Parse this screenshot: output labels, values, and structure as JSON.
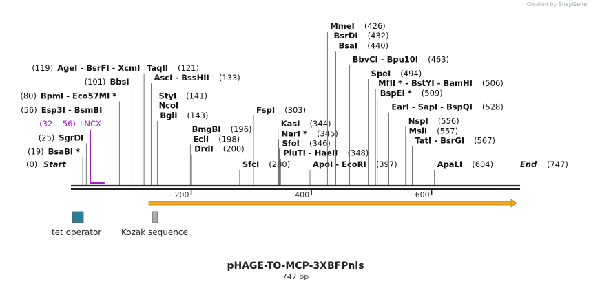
{
  "brand": {
    "created_by": "Created by",
    "app": "SnapGene"
  },
  "plasmid": {
    "name": "pHAGE-TO-MCP-3XBFPnls",
    "length_label": "747 bp"
  },
  "map": {
    "total_bp": 747,
    "axis_ticks": [
      200,
      400,
      600
    ],
    "start_label": {
      "pos": "(0)",
      "name": "Start"
    },
    "end_label": {
      "name": "End",
      "pos": "(747)"
    },
    "primer": {
      "range": "(32 .. 56)",
      "name": "LNCX",
      "start": 32,
      "end": 56,
      "color": "#a020c8"
    },
    "orf": {
      "start": 141,
      "end": 747,
      "color": "#f5a623"
    },
    "legend": [
      {
        "label": "tet operator",
        "color": "#2e7d94"
      },
      {
        "label": "Kozak sequence",
        "color": "#aaaaaa"
      }
    ]
  },
  "sites": [
    {
      "name": "BsaBI *",
      "pos": 19,
      "num": "(19)",
      "row": 9,
      "side": "L"
    },
    {
      "name": "SgrDI",
      "pos": 25,
      "num": "(25)",
      "row": 8,
      "side": "L"
    },
    {
      "name": "Esp3I - BsmBI",
      "pos": 56,
      "num": "(56)",
      "row": 6,
      "side": "L"
    },
    {
      "name": "BpmI - Eco57MI *",
      "pos": 80,
      "num": "(80)",
      "row": 5,
      "side": "L"
    },
    {
      "name": "BbsI",
      "pos": 101,
      "num": "(101)",
      "row": 4,
      "side": "L"
    },
    {
      "name": "AgeI - BsrFI - XcmI",
      "pos": 119,
      "num": "(119)",
      "row": 3,
      "side": "L"
    },
    {
      "name": "TaqII",
      "pos": 121,
      "num": "(121)",
      "row": 3,
      "side": "R"
    },
    {
      "name": "AscI - BssHII",
      "pos": 133,
      "num": "(133)",
      "row": 3.7,
      "side": "R"
    },
    {
      "name": "StyI",
      "pos": 141,
      "num": "(141)",
      "row": 5,
      "side": "R"
    },
    {
      "name": "NcoI",
      "pos": 141,
      "num": "",
      "row": 5.7,
      "side": "R"
    },
    {
      "name": "BglI",
      "pos": 143,
      "num": "(143)",
      "row": 6.4,
      "side": "R"
    },
    {
      "name": "BmgBI",
      "pos": 196,
      "num": "(196)",
      "row": 7.4,
      "side": "R"
    },
    {
      "name": "EclI",
      "pos": 198,
      "num": "(198)",
      "row": 8.1,
      "side": "R"
    },
    {
      "name": "DrdI",
      "pos": 200,
      "num": "(200)",
      "row": 8.8,
      "side": "R"
    },
    {
      "name": "SfcI",
      "pos": 280,
      "num": "(280)",
      "row": 9.9,
      "side": "R",
      "numSide": "R"
    },
    {
      "name": "FspI",
      "pos": 303,
      "num": "(303)",
      "row": 6,
      "side": "R"
    },
    {
      "name": "KasI",
      "pos": 344,
      "num": "(344)",
      "row": 7,
      "side": "R"
    },
    {
      "name": "NarI *",
      "pos": 345,
      "num": "(345)",
      "row": 7.7,
      "side": "R"
    },
    {
      "name": "SfoI",
      "pos": 346,
      "num": "(346)",
      "row": 8.4,
      "side": "R"
    },
    {
      "name": "PluTI - HaeII",
      "pos": 348,
      "num": "(348)",
      "row": 9.1,
      "side": "R"
    },
    {
      "name": "ApoI - EcoRI",
      "pos": 397,
      "num": "(397)",
      "row": 9.9,
      "side": "R"
    },
    {
      "name": "MmeI",
      "pos": 426,
      "num": "(426)",
      "row": 0,
      "side": "R"
    },
    {
      "name": "BsrDI",
      "pos": 432,
      "num": "(432)",
      "row": 0.7,
      "side": "R"
    },
    {
      "name": "BsaI",
      "pos": 440,
      "num": "(440)",
      "row": 1.4,
      "side": "R"
    },
    {
      "name": "BbvCI - Bpu10I",
      "pos": 463,
      "num": "(463)",
      "row": 2.4,
      "side": "R"
    },
    {
      "name": "SpeI",
      "pos": 494,
      "num": "(494)",
      "row": 3.4,
      "side": "R"
    },
    {
      "name": "MfII * - BstYI - BamHI",
      "pos": 506,
      "num": "(506)",
      "row": 4.1,
      "side": "R"
    },
    {
      "name": "BspEI *",
      "pos": 509,
      "num": "(509)",
      "row": 4.8,
      "side": "R"
    },
    {
      "name": "EarI - SapI - BspQI",
      "pos": 528,
      "num": "(528)",
      "row": 5.8,
      "side": "R"
    },
    {
      "name": "NspI",
      "pos": 556,
      "num": "(556)",
      "row": 6.8,
      "side": "R"
    },
    {
      "name": "MslI",
      "pos": 557,
      "num": "(557)",
      "row": 7.5,
      "side": "R"
    },
    {
      "name": "TatI - BsrGI",
      "pos": 567,
      "num": "(567)",
      "row": 8.2,
      "side": "R"
    },
    {
      "name": "ApaLI",
      "pos": 604,
      "num": "(604)",
      "row": 9.9,
      "side": "R"
    }
  ]
}
